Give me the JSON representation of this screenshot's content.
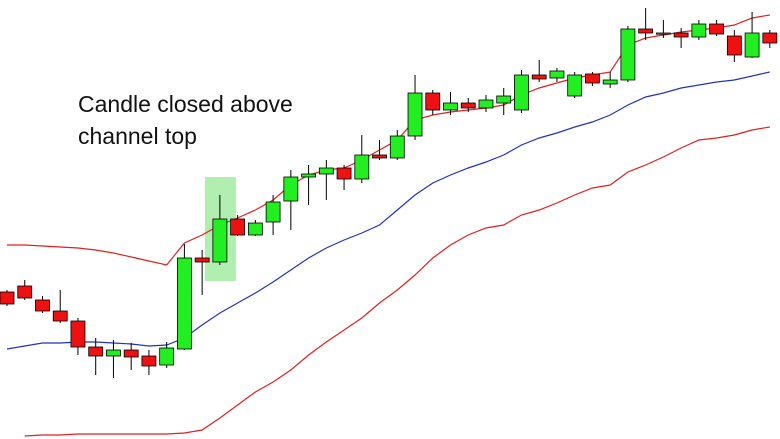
{
  "chart_data": {
    "type": "candlestick",
    "annotation": [
      "Candle closed above",
      "channel top"
    ],
    "highlight_index": 12,
    "ylim": [
      0,
      439
    ],
    "up_color": "#22ee22",
    "down_color": "#ee1111",
    "open": [
      147,
      153,
      139,
      128,
      118,
      92,
      83,
      89,
      83,
      74,
      90,
      181,
      177,
      220,
      204,
      217,
      238,
      262,
      265,
      271,
      260,
      284,
      281,
      303,
      346,
      329,
      336,
      331,
      336,
      329,
      364,
      361,
      343,
      365,
      355,
      359,
      410,
      406,
      406,
      402,
      415,
      403,
      382,
      406
    ],
    "high": [
      149,
      159,
      143,
      149,
      121,
      101,
      99,
      96,
      89,
      97,
      195,
      189,
      244,
      224,
      219,
      244,
      269,
      274,
      279,
      274,
      304,
      299,
      309,
      364,
      349,
      347,
      341,
      344,
      351,
      369,
      379,
      371,
      367,
      367,
      367,
      413,
      431,
      419,
      411,
      419,
      419,
      409,
      427,
      409
    ],
    "low": [
      133,
      139,
      126,
      116,
      84,
      64,
      61,
      69,
      64,
      71,
      89,
      144,
      174,
      203,
      203,
      204,
      209,
      234,
      239,
      249,
      256,
      279,
      279,
      299,
      324,
      324,
      327,
      327,
      324,
      326,
      357,
      357,
      341,
      353,
      351,
      357,
      399,
      401,
      391,
      399,
      403,
      377,
      381,
      391
    ],
    "close": [
      135,
      141,
      128,
      118,
      92,
      83,
      89,
      82,
      73,
      91,
      181,
      177,
      220,
      204,
      216,
      237,
      262,
      265,
      271,
      260,
      284,
      281,
      303,
      346,
      329,
      336,
      331,
      339,
      343,
      364,
      360,
      368,
      364,
      356,
      359,
      410,
      406,
      406,
      402,
      415,
      405,
      384,
      406,
      396
    ],
    "series": [
      {
        "color": "#dd2222",
        "values": [
          194,
          194,
          193,
          192,
          191,
          189,
          186,
          182,
          178,
          174,
          196,
          204,
          214,
          221,
          229,
          239,
          254,
          264,
          269,
          271,
          279,
          289,
          299,
          319,
          324,
          327,
          329,
          331,
          334,
          344,
          351,
          356,
          361,
          364,
          367,
          394,
          401,
          404,
          407,
          409,
          411,
          414,
          421,
          424
        ]
      },
      {
        "color": "#2233bb",
        "values": [
          90,
          93,
          96,
          96,
          97,
          97,
          96,
          95,
          93,
          94,
          101,
          114,
          126,
          136,
          146,
          157,
          169,
          181,
          191,
          199,
          206,
          214,
          229,
          244,
          256,
          264,
          271,
          277,
          284,
          294,
          301,
          306,
          312,
          317,
          324,
          334,
          342,
          346,
          351,
          354,
          357,
          359,
          363,
          367
        ]
      },
      {
        "color": "#dd2222",
        "values": [
          null,
          3,
          4,
          4,
          5,
          5,
          5,
          5,
          5,
          5,
          6,
          9,
          21,
          34,
          47,
          57,
          69,
          84,
          97,
          109,
          121,
          136,
          149,
          164,
          181,
          194,
          204,
          211,
          214,
          224,
          229,
          236,
          244,
          251,
          254,
          267,
          274,
          282,
          291,
          299,
          301,
          304,
          309,
          312
        ]
      }
    ]
  }
}
